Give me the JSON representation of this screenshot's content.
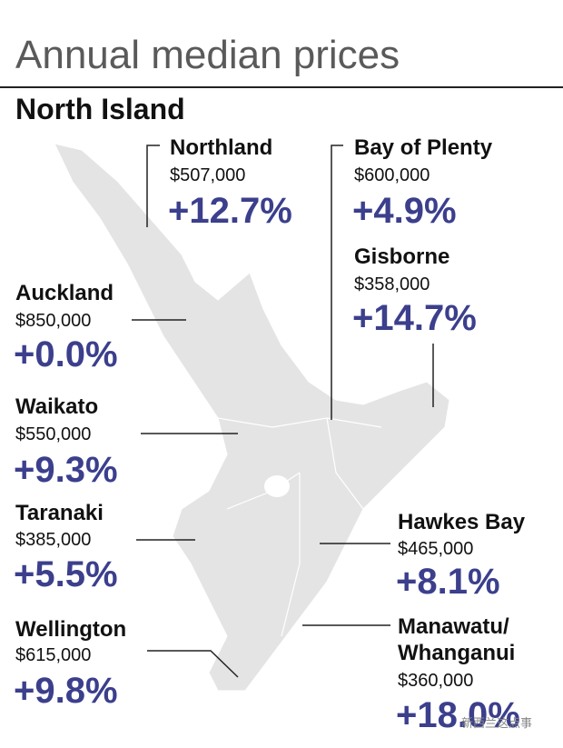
{
  "header": {
    "title": "Annual median prices",
    "subtitle": "North Island"
  },
  "regions": [
    {
      "name": "Northland",
      "price": "$507,000",
      "change": "+12.7%"
    },
    {
      "name": "Bay of Plenty",
      "price": "$600,000",
      "change": "+4.9%"
    },
    {
      "name": "Gisborne",
      "price": "$358,000",
      "change": "+14.7%"
    },
    {
      "name": "Auckland",
      "price": "$850,000",
      "change": "+0.0%"
    },
    {
      "name": "Waikato",
      "price": "$550,000",
      "change": "+9.3%"
    },
    {
      "name": "Taranaki",
      "price": "$385,000",
      "change": "+5.5%"
    },
    {
      "name": "Hawkes Bay",
      "price": "$465,000",
      "change": "+8.1%"
    },
    {
      "name": "Wellington",
      "price": "$615,000",
      "change": "+9.8%"
    },
    {
      "name": [
        "Manawatu/",
        "Whanganui"
      ],
      "price": "$360,000",
      "change": "+18.0%"
    }
  ],
  "watermark": "新西兰这点事"
}
